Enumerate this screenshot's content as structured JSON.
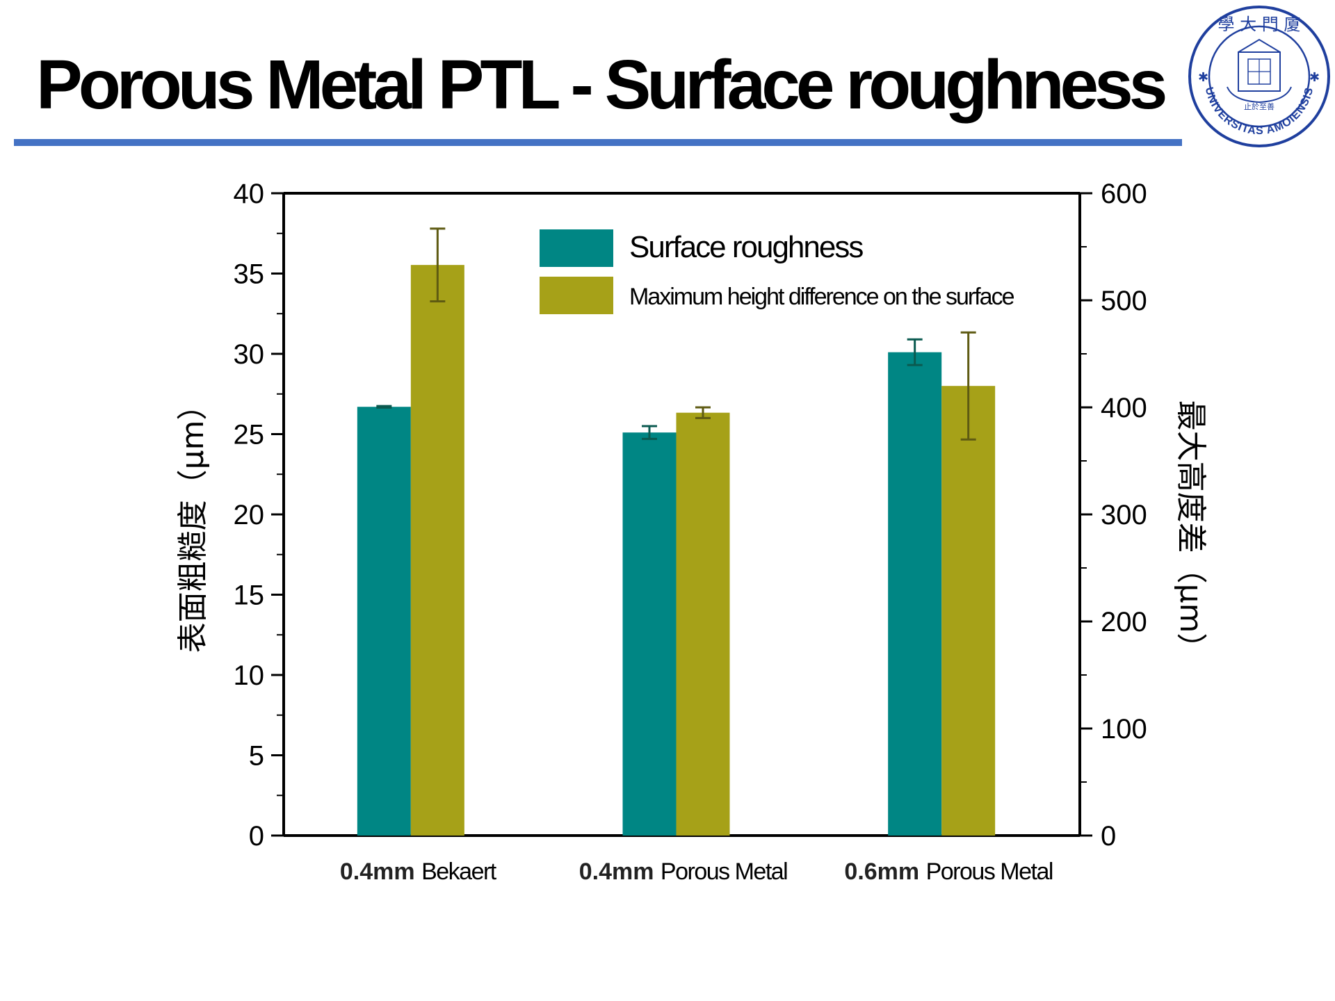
{
  "slide": {
    "title": "Porous Metal PTL - Surface roughness",
    "accent_color": "#4472C4"
  },
  "logo": {
    "top_text": "學 大 門 廈",
    "ring_text": "UNIVERSITAS AMOIENSIS",
    "motto": "止於至善",
    "color": "#1F3F9E",
    "icon": "university-seal-icon"
  },
  "chart_data": {
    "type": "bar",
    "categories": [
      {
        "bold": "0.4mm",
        "plain": "Bekaert"
      },
      {
        "bold": "0.4mm",
        "plain": "Porous Metal"
      },
      {
        "bold": "0.6mm",
        "plain": "Porous Metal"
      }
    ],
    "series": [
      {
        "name": "Surface roughness",
        "axis": "left",
        "color": "#008684",
        "values": [
          26.7,
          25.1,
          30.1
        ],
        "errors": [
          0.05,
          0.4,
          0.8
        ]
      },
      {
        "name": "Maximum height difference on the surface",
        "axis": "right",
        "color": "#A6A118",
        "values": [
          533,
          395,
          420
        ],
        "errors": [
          34,
          5,
          50
        ]
      }
    ],
    "y_left": {
      "label": "表面粗糙度（μm）",
      "range": [
        0,
        40
      ],
      "ticks": [
        "0",
        "5",
        "10",
        "15",
        "20",
        "25",
        "30",
        "35",
        "40"
      ]
    },
    "y_right": {
      "label": "最大高度差（μm）",
      "range": [
        0,
        600
      ],
      "ticks": [
        "0",
        "100",
        "200",
        "300",
        "400",
        "500",
        "600"
      ]
    },
    "legend_position": "top-right",
    "grid": false
  }
}
